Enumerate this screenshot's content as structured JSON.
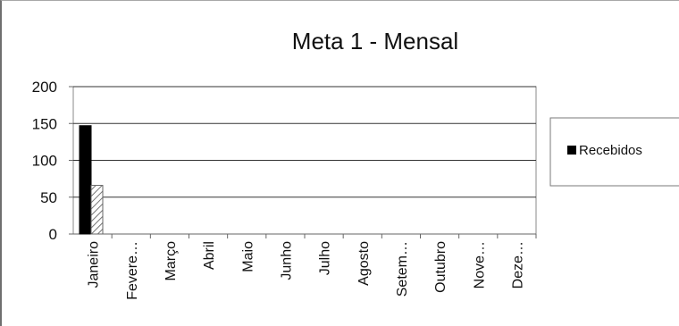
{
  "chart_data": {
    "type": "bar",
    "title": "Meta 1 - Mensal",
    "categories": [
      "Janeiro",
      "Fevere…",
      "Março",
      "Abril",
      "Maio",
      "Junho",
      "Julho",
      "Agosto",
      "Setem…",
      "Outubro",
      "Nove…",
      "Deze…"
    ],
    "series": [
      {
        "name": "Recebidos",
        "values": [
          147,
          0,
          0,
          0,
          0,
          0,
          0,
          0,
          0,
          0,
          0,
          0
        ],
        "fill": "#000000",
        "pattern": "solid"
      },
      {
        "values": [
          66,
          0,
          0,
          0,
          0,
          0,
          0,
          0,
          0,
          0,
          0,
          0
        ],
        "fill": "#8c8c8c",
        "pattern": "diagonal-hatch"
      }
    ],
    "yticks": [
      "200",
      "150",
      "100",
      "50",
      "0"
    ],
    "ylim": [
      0,
      200
    ],
    "grid": true,
    "legend_position": "right"
  }
}
